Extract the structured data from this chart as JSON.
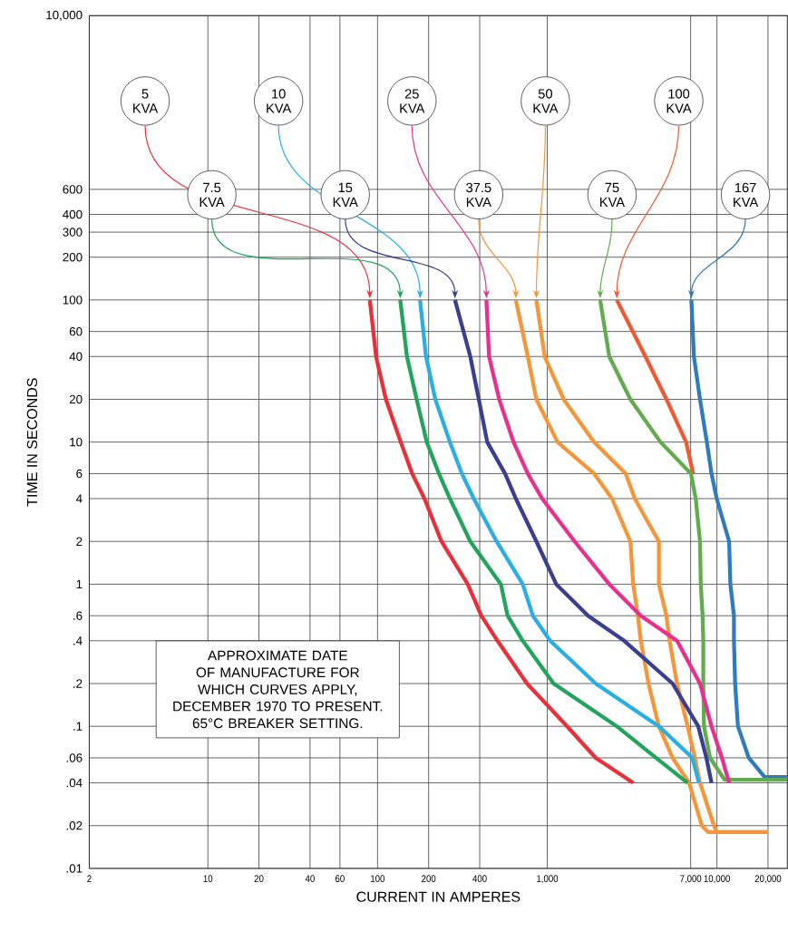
{
  "chart_data": {
    "type": "line",
    "log": "xy",
    "grid": true,
    "xlabel": "CURRENT IN AMPERES",
    "ylabel": "TIME IN SECONDS",
    "xlim": [
      2,
      26000
    ],
    "ylim": [
      0.01,
      10000
    ],
    "xticks": [
      2,
      10,
      20,
      40,
      60,
      100,
      200,
      400,
      {
        "value": 1000,
        "label": "1,000"
      },
      {
        "value": 7000,
        "label": "7,000"
      },
      {
        "value": 10000,
        "label": "10,000"
      },
      {
        "value": 20000,
        "label": "20,000"
      }
    ],
    "yticks": [
      {
        "value": 10000,
        "label": "10,000"
      },
      600,
      400,
      300,
      200,
      100,
      60,
      40,
      20,
      10,
      6,
      4,
      2,
      1,
      {
        "value": 0.6,
        "label": ".6"
      },
      {
        "value": 0.4,
        "label": ".4"
      },
      {
        "value": 0.2,
        "label": ".2"
      },
      {
        "value": 0.1,
        "label": ".1"
      },
      {
        "value": 0.06,
        "label": ".06"
      },
      {
        "value": 0.04,
        "label": ".04"
      },
      {
        "value": 0.02,
        "label": ".02"
      },
      {
        "value": 0.01,
        "label": ".01"
      }
    ],
    "annotations": [
      "APPROXIMATE DATE OF MANUFACTURE FOR WHICH CURVES APPLY, DECEMBER 1970 TO PRESENT. 65°C BREAKER SETTING."
    ],
    "series": [
      {
        "name": "5 KVA",
        "color": "#e8303a",
        "x": [
          90,
          98,
          112,
          137,
          160,
          189,
          238,
          340,
          409,
          509,
          760,
          1310,
          1930,
          3210
        ],
        "values": [
          100,
          40,
          20,
          10,
          6,
          4,
          2,
          1,
          0.6,
          0.4,
          0.2,
          0.1,
          0.06,
          0.04
        ]
      },
      {
        "name": "7.5 KVA",
        "color": "#22a55a",
        "x": [
          136,
          149,
          170,
          195,
          230,
          267,
          352,
          533,
          584,
          717,
          1090,
          2570,
          4370,
          6720
        ],
        "values": [
          100,
          40,
          20,
          10,
          6,
          4,
          2,
          1,
          0.6,
          0.4,
          0.2,
          0.1,
          0.06,
          0.04
        ]
      },
      {
        "name": "10 KVA",
        "color": "#2aaee3",
        "x": [
          178,
          193,
          219,
          267,
          314,
          369,
          503,
          717,
          823,
          1040,
          1930,
          4550,
          7170,
          7830
        ],
        "values": [
          100,
          40,
          20,
          10,
          6,
          4,
          2,
          1,
          0.6,
          0.4,
          0.2,
          0.1,
          0.06,
          0.04
        ]
      },
      {
        "name": "15 KVA",
        "color": "#3b3f8f",
        "x": [
          286,
          352,
          395,
          443,
          564,
          653,
          863,
          1130,
          1740,
          2840,
          5480,
          7760,
          8670,
          9290
        ],
        "values": [
          100,
          40,
          20,
          10,
          6,
          4,
          2,
          1,
          0.6,
          0.4,
          0.2,
          0.1,
          0.06,
          0.04
        ]
      },
      {
        "name": "25 KVA",
        "color": "#e8308f",
        "x": [
          438,
          454,
          521,
          633,
          768,
          933,
          1450,
          2320,
          3560,
          5820,
          7950,
          9290,
          10700,
          11800
        ],
        "values": [
          100,
          40,
          20,
          10,
          6,
          4,
          2,
          1,
          0.6,
          0.4,
          0.2,
          0.1,
          0.06,
          0.04
        ]
      },
      {
        "name": "37.5 KVA",
        "color": "#f5963a",
        "x": [
          653,
          768,
          863,
          1150,
          1890,
          2410,
          3090,
          3210,
          3420,
          3560,
          3950,
          4550,
          5480,
          6860,
          8150,
          8890,
          20000
        ],
        "values": [
          100,
          40,
          20,
          10,
          6,
          4,
          2,
          1,
          0.6,
          0.4,
          0.2,
          0.1,
          0.06,
          0.04,
          0.02,
          0.018,
          0.018
        ]
      },
      {
        "name": "50 KVA",
        "color": "#f5963a",
        "x": [
          863,
          966,
          1250,
          1890,
          2900,
          3280,
          4550,
          4550,
          5040,
          5260,
          5820,
          6720,
          7420,
          7950,
          9610,
          10000,
          20000
        ],
        "values": [
          100,
          40,
          20,
          10,
          6,
          4,
          2,
          1,
          0.6,
          0.4,
          0.2,
          0.1,
          0.06,
          0.04,
          0.02,
          0.018,
          0.018
        ]
      },
      {
        "name": "75 KVA",
        "color": "#62ab4f",
        "x": [
          2050,
          2320,
          3090,
          4650,
          7030,
          7500,
          7950,
          8030,
          8230,
          8310,
          8310,
          8390,
          9110,
          11100,
          26000
        ],
        "values": [
          100,
          40,
          20,
          10,
          6,
          4,
          2,
          1,
          0.6,
          0.4,
          0.2,
          0.1,
          0.06,
          0.042,
          0.042
        ]
      },
      {
        "name": "100 KVA",
        "color": "#ef5a35",
        "x": [
          2570,
          3790,
          5040,
          6580,
          7240
        ],
        "values": [
          100,
          40,
          20,
          10,
          6
        ]
      },
      {
        "name": "167 KVA",
        "color": "#2f7bbd",
        "x": [
          7070,
          7320,
          7950,
          8720,
          9290,
          9970,
          11800,
          12000,
          12600,
          12600,
          12800,
          13300,
          15400,
          19100,
          26000
        ],
        "values": [
          100,
          40,
          20,
          10,
          6,
          4,
          2,
          1,
          0.6,
          0.4,
          0.2,
          0.1,
          0.06,
          0.044,
          0.044
        ]
      }
    ]
  }
}
